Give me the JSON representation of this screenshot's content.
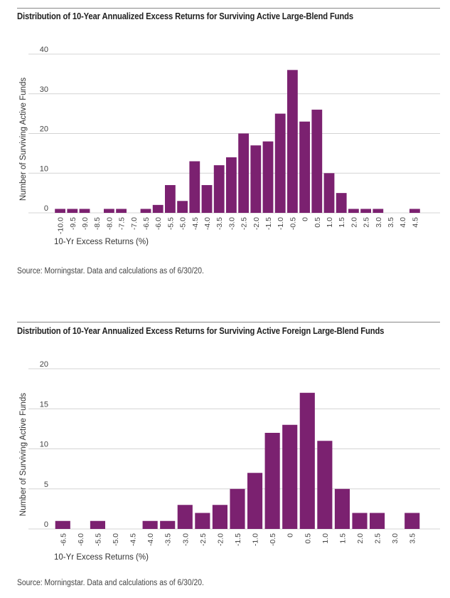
{
  "charts": [
    {
      "title": "Distribution of 10-Year Annualized Excess Returns for Surviving Active Large-Blend Funds",
      "source": "Source: Morningstar. Data and calculations as of 6/30/20.",
      "chart_data": {
        "type": "bar",
        "xlabel": "10-Yr Excess Returns (%)",
        "ylabel": "Number of Surviving Active Funds",
        "ylim": [
          0,
          40
        ],
        "yticks": [
          "0",
          "10",
          "20",
          "30",
          "40"
        ],
        "grid": true,
        "color": "#7b2170",
        "categories": [
          "-10.0",
          "-9.5",
          "-9.0",
          "-8.5",
          "-8.0",
          "-7.5",
          "-7.0",
          "-6.5",
          "-6.0",
          "-5.5",
          "-5.0",
          "-4.5",
          "-4.0",
          "-3.5",
          "-3.0",
          "-2.5",
          "-2.0",
          "-1.5",
          "-1.0",
          "-0.5",
          "0",
          "0.5",
          "1.0",
          "1.5",
          "2.0",
          "2.5",
          "3.0",
          "3.5",
          "4.0",
          "4.5"
        ],
        "values": [
          1,
          1,
          1,
          0,
          1,
          1,
          0,
          1,
          2,
          7,
          3,
          13,
          7,
          12,
          14,
          20,
          17,
          18,
          25,
          36,
          23,
          26,
          10,
          5,
          1,
          1,
          1,
          0,
          0,
          1
        ]
      }
    },
    {
      "title": "Distribution of 10-Year Annualized Excess Returns for Surviving Active Foreign Large-Blend Funds",
      "source": "Source: Morningstar. Data and calculations as of 6/30/20.",
      "chart_data": {
        "type": "bar",
        "xlabel": "10-Yr Excess Returns (%)",
        "ylabel": "Number of Surviving Active Funds",
        "ylim": [
          0,
          20
        ],
        "yticks": [
          "0",
          "5",
          "10",
          "15",
          "20"
        ],
        "grid": true,
        "color": "#7b2170",
        "categories": [
          "-6.5",
          "-6.0",
          "-5.5",
          "-5.0",
          "-4.5",
          "-4.0",
          "-3.5",
          "-3.0",
          "-2.5",
          "-2.0",
          "-1.5",
          "-1.0",
          "-0.5",
          "0",
          "0.5",
          "1.0",
          "1.5",
          "2.0",
          "2.5",
          "3.0",
          "3.5"
        ],
        "values": [
          1,
          0,
          1,
          0,
          0,
          1,
          1,
          3,
          2,
          3,
          5,
          7,
          12,
          13,
          17,
          11,
          5,
          2,
          2,
          0,
          2
        ]
      }
    }
  ]
}
